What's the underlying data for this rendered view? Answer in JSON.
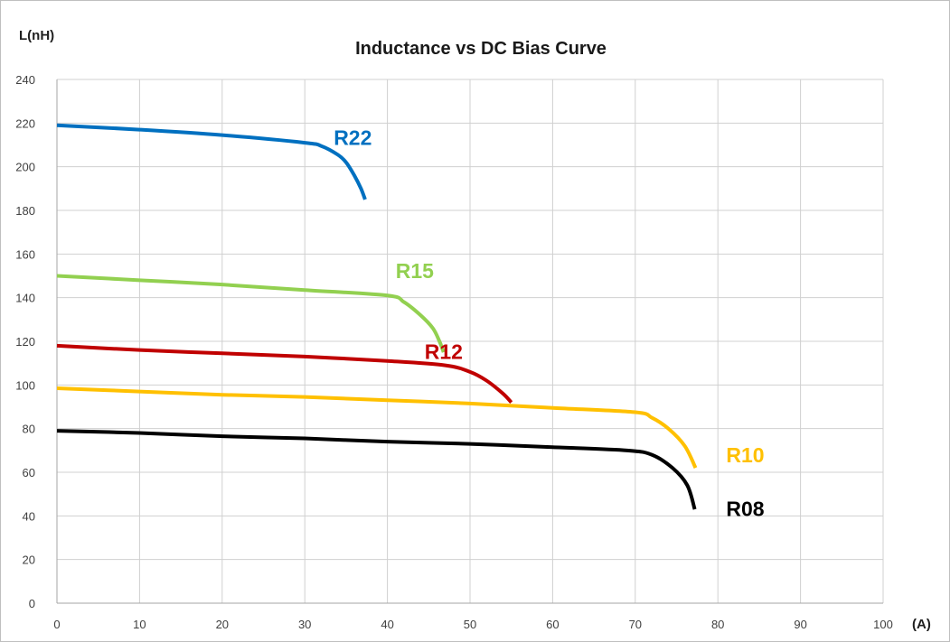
{
  "chart_data": {
    "type": "line",
    "title": "Inductance vs DC Bias Curve",
    "ylabel": "L(nH)",
    "xlabel": "(A)",
    "xlim": [
      0,
      100
    ],
    "ylim": [
      0,
      240
    ],
    "x_ticks": [
      "0",
      "10",
      "20",
      "30",
      "40",
      "50",
      "60",
      "70",
      "80",
      "90",
      "100"
    ],
    "y_ticks": [
      "0",
      "20",
      "40",
      "60",
      "80",
      "100",
      "120",
      "140",
      "160",
      "180",
      "200",
      "220",
      "240"
    ],
    "grid": true,
    "legend": "inline labels",
    "series": [
      {
        "name": "R22",
        "color": "#0070C0",
        "x": [
          0,
          10,
          20,
          30,
          32,
          34,
          35,
          36,
          36.8,
          37.3
        ],
        "y": [
          219,
          217,
          214.5,
          211,
          209.5,
          205.5,
          202,
          196,
          190,
          185
        ]
      },
      {
        "name": "R15",
        "color": "#92D050",
        "x": [
          0,
          10,
          20,
          30,
          40,
          42,
          44,
          45.5,
          46.3,
          46.8
        ],
        "y": [
          150,
          148,
          146,
          143.5,
          141,
          138,
          132,
          126,
          120,
          115
        ]
      },
      {
        "name": "R12",
        "color": "#C00000",
        "x": [
          0,
          10,
          20,
          30,
          40,
          47,
          50,
          52,
          54,
          55
        ],
        "y": [
          118,
          116,
          114.5,
          113,
          111,
          109,
          106,
          102,
          96,
          92
        ]
      },
      {
        "name": "R10",
        "color": "#FFC000",
        "x": [
          0,
          10,
          20,
          30,
          40,
          50,
          60,
          70,
          72,
          74,
          76,
          77.3
        ],
        "y": [
          98.5,
          97,
          95.5,
          94.5,
          93,
          91.5,
          89.5,
          87.5,
          85,
          80,
          72,
          62
        ]
      },
      {
        "name": "R08",
        "color": "#000000",
        "x": [
          0,
          10,
          20,
          30,
          40,
          50,
          60,
          69,
          72,
          74.5,
          76.3,
          77.2
        ],
        "y": [
          79,
          78,
          76.5,
          75.5,
          74,
          73,
          71.5,
          70,
          68,
          62,
          54,
          43
        ]
      }
    ],
    "annotations": [
      {
        "text": "R22",
        "x": 33.5,
        "y": 210,
        "color": "#0070C0"
      },
      {
        "text": "R15",
        "x": 41,
        "y": 149,
        "color": "#92D050"
      },
      {
        "text": "R12",
        "x": 44.5,
        "y": 112,
        "color": "#C00000"
      },
      {
        "text": "R10",
        "x": 81,
        "y": 64.5,
        "color": "#FFC000"
      },
      {
        "text": "R08",
        "x": 81,
        "y": 40,
        "color": "#000000"
      }
    ]
  }
}
